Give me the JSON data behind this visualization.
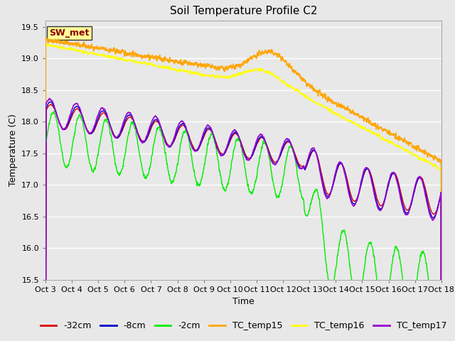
{
  "title": "Soil Temperature Profile C2",
  "xlabel": "Time",
  "ylabel": "Temperature (C)",
  "ylim": [
    15.5,
    19.6
  ],
  "xlim": [
    0,
    15
  ],
  "x_tick_labels": [
    "Oct 3",
    "Oct 4",
    "Oct 5",
    "Oct 6",
    "Oct 7",
    "Oct 8",
    "Oct 9",
    "Oct 10",
    "Oct 11",
    "Oct 12",
    "Oct 13",
    "Oct 14",
    "Oct 15",
    "Oct 16",
    "Oct 17",
    "Oct 18"
  ],
  "x_tick_positions": [
    0,
    1,
    2,
    3,
    4,
    5,
    6,
    7,
    8,
    9,
    10,
    11,
    12,
    13,
    14,
    15
  ],
  "yticks": [
    15.5,
    16.0,
    16.5,
    17.0,
    17.5,
    18.0,
    18.5,
    19.0,
    19.5
  ],
  "fig_facecolor": "#e8e8e8",
  "plot_bg_color": "#e8e8e8",
  "line_colors": {
    "TC_temp15": "#ffa500",
    "TC_temp16": "#ffff00",
    "TC_temp17": "#9400d3",
    "neg2cm": "#00ee00",
    "neg8cm": "#0000cc",
    "neg32cm": "#dd0000"
  },
  "legend_labels": [
    "-32cm",
    "-8cm",
    "-2cm",
    "TC_temp15",
    "TC_temp16",
    "TC_temp17"
  ],
  "legend_colors": [
    "#dd0000",
    "#0000cc",
    "#00ee00",
    "#ffa500",
    "#ffff00",
    "#9400d3"
  ],
  "sw_met_box_facecolor": "#ffff99",
  "sw_met_box_edgecolor": "#333333",
  "sw_met_text_color": "#8b0000",
  "title_fontsize": 11,
  "axis_label_fontsize": 9,
  "tick_fontsize": 8,
  "legend_fontsize": 9
}
